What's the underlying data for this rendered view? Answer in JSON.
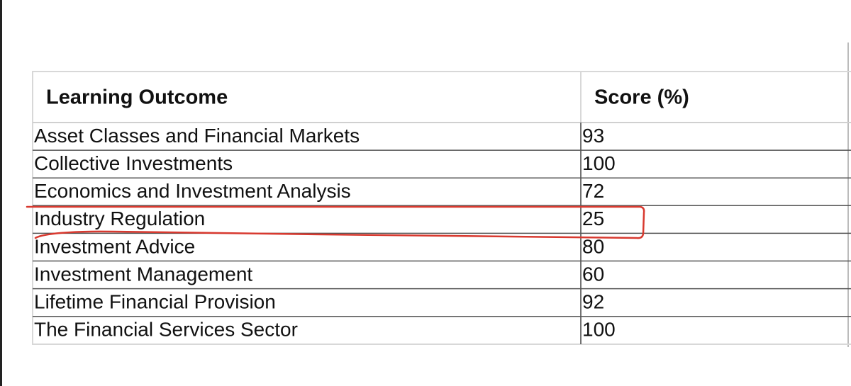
{
  "table": {
    "headers": [
      "Learning Outcome",
      "Score (%)"
    ],
    "rows": [
      [
        "Asset Classes and Financial Markets",
        93
      ],
      [
        "Collective Investments",
        100
      ],
      [
        "Economics and Investment Analysis",
        72
      ],
      [
        "Industry Regulation",
        25
      ],
      [
        "Investment Advice",
        80
      ],
      [
        "Investment Management",
        60
      ],
      [
        "Lifetime Financial Provision",
        92
      ],
      [
        "The Financial Services Sector",
        100
      ]
    ]
  }
}
